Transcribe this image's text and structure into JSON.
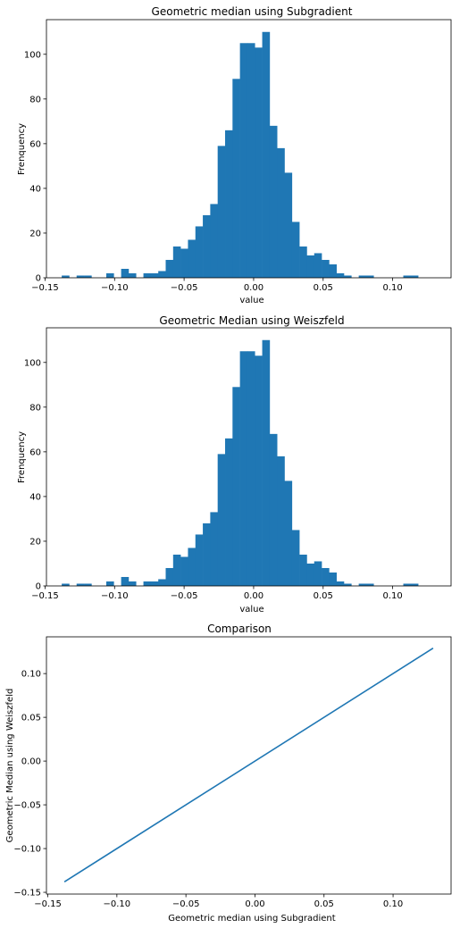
{
  "chart_data": [
    {
      "type": "bar",
      "title": "Geometric median using Subgradient",
      "xlabel": "value",
      "ylabel": "Frenquency",
      "xlim": [
        -0.149,
        0.142
      ],
      "ylim": [
        0,
        115.5
      ],
      "xticks": [
        -0.15,
        -0.1,
        -0.05,
        0.0,
        0.05,
        0.1
      ],
      "xtick_labels": [
        "−0.15",
        "−0.10",
        "−0.05",
        "0.00",
        "0.05",
        "0.10"
      ],
      "yticks": [
        0,
        20,
        40,
        60,
        80,
        100
      ],
      "yticks_labels": [
        "0",
        "20",
        "40",
        "60",
        "80",
        "100"
      ],
      "bin_start": -0.138,
      "bin_width": 0.00534,
      "counts": [
        1,
        0,
        1,
        1,
        0,
        0,
        2,
        0,
        4,
        2,
        0,
        2,
        2,
        3,
        8,
        14,
        13,
        17,
        23,
        28,
        33,
        59,
        66,
        89,
        105,
        105,
        103,
        110,
        68,
        58,
        47,
        25,
        14,
        10,
        11,
        8,
        6,
        2,
        1,
        0,
        1,
        1,
        0,
        0,
        0,
        0,
        1,
        1
      ],
      "color": "#1f77b4"
    },
    {
      "type": "bar",
      "title": "Geometric Median using Weiszfeld",
      "xlabel": "value",
      "ylabel": "Frenquency",
      "xlim": [
        -0.149,
        0.142
      ],
      "ylim": [
        0,
        115.5
      ],
      "xticks": [
        -0.15,
        -0.1,
        -0.05,
        0.0,
        0.05,
        0.1
      ],
      "xtick_labels": [
        "−0.15",
        "−0.10",
        "−0.05",
        "0.00",
        "0.05",
        "0.10"
      ],
      "yticks": [
        0,
        20,
        40,
        60,
        80,
        100
      ],
      "yticks_labels": [
        "0",
        "20",
        "40",
        "60",
        "80",
        "100"
      ],
      "bin_start": -0.138,
      "bin_width": 0.00534,
      "counts": [
        1,
        0,
        1,
        1,
        0,
        0,
        2,
        0,
        4,
        2,
        0,
        2,
        2,
        3,
        8,
        14,
        13,
        17,
        23,
        28,
        33,
        59,
        66,
        89,
        105,
        105,
        103,
        110,
        68,
        58,
        47,
        25,
        14,
        10,
        11,
        8,
        6,
        2,
        1,
        0,
        1,
        1,
        0,
        0,
        0,
        0,
        1,
        1
      ],
      "color": "#1f77b4"
    },
    {
      "type": "line",
      "title": "Comparison",
      "xlabel": "Geometric median using Subgradient",
      "ylabel": "Geometric Median using Weiszfeld",
      "xlim": [
        -0.151,
        0.142
      ],
      "ylim": [
        -0.152,
        0.142
      ],
      "xticks": [
        -0.15,
        -0.1,
        -0.05,
        0.0,
        0.05,
        0.1
      ],
      "xtick_labels": [
        "−0.15",
        "−0.10",
        "−0.05",
        "0.00",
        "0.05",
        "0.10"
      ],
      "yticks": [
        -0.15,
        -0.1,
        -0.05,
        0.0,
        0.05,
        0.1
      ],
      "yticks_labels": [
        "−0.15",
        "−0.10",
        "−0.05",
        "0.00",
        "0.05",
        "0.10"
      ],
      "x": [
        -0.138,
        0.129
      ],
      "y": [
        -0.138,
        0.129
      ],
      "color": "#1f77b4"
    }
  ]
}
